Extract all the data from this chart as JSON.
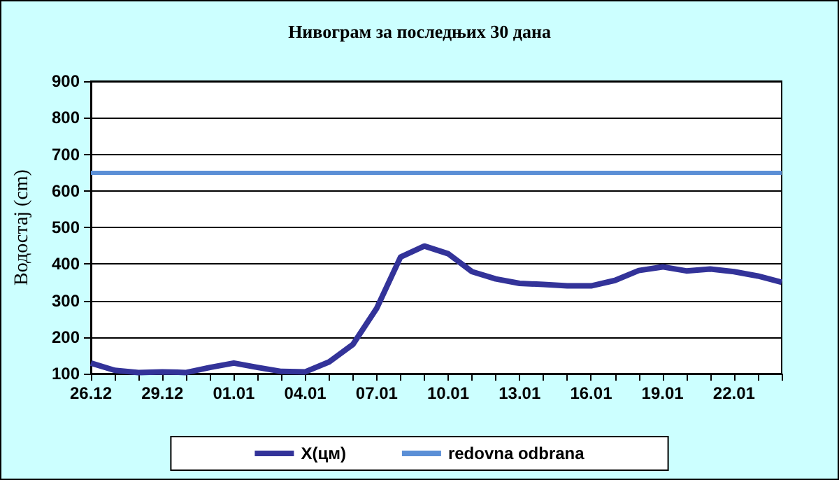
{
  "chart_data": {
    "type": "line",
    "title": "Нивограм за последњих 30 дана",
    "ylabel": "Водостај (cm)",
    "categories": [
      "26.12",
      null,
      null,
      "29.12",
      null,
      null,
      "01.01",
      null,
      null,
      "04.01",
      null,
      null,
      "07.01",
      null,
      null,
      "10.01",
      null,
      null,
      "13.01",
      null,
      null,
      "16.01",
      null,
      null,
      "19.01",
      null,
      null,
      "22.01",
      null,
      null
    ],
    "series": [
      {
        "name": "X(цм)",
        "color": "#333399",
        "values": [
          129,
          109,
          103,
          105,
          103,
          117,
          129,
          117,
          106,
          105,
          132,
          180,
          279,
          419,
          449,
          428,
          379,
          359,
          347,
          344,
          340,
          340,
          355,
          382,
          392,
          381,
          386,
          379,
          367,
          350
        ]
      }
    ],
    "ref_lines": [
      {
        "axis": "y",
        "value": 650,
        "label": "redovna odbrana",
        "color": "#5b8fd6"
      }
    ],
    "ylim": [
      100,
      900
    ],
    "yticks": [
      100,
      200,
      300,
      400,
      500,
      600,
      700,
      800,
      900
    ],
    "grid": "y",
    "legend": "bottom",
    "marker": "none",
    "line_style": "solid"
  }
}
